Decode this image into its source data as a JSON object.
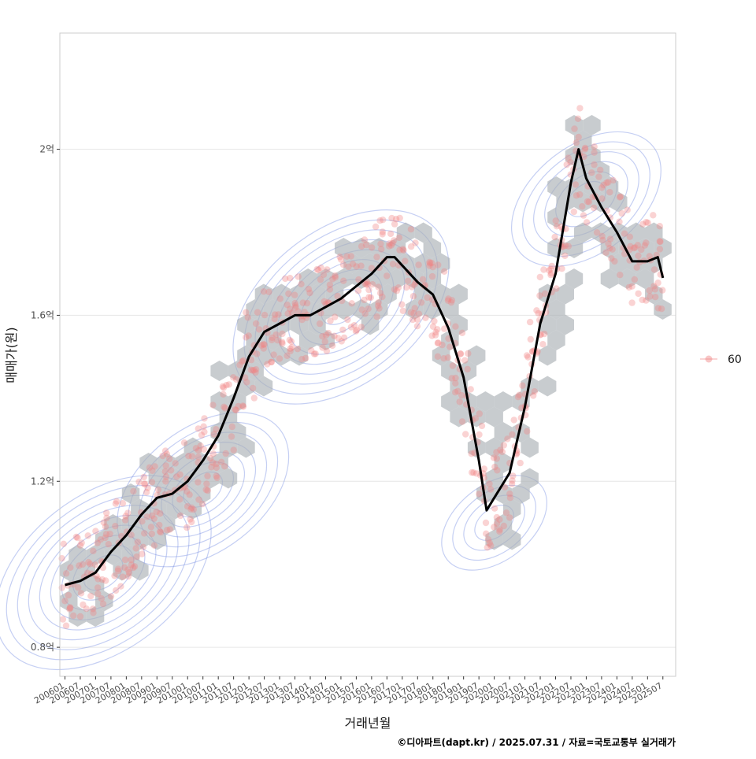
{
  "chart_data": {
    "type": "scatter",
    "xlabel": "거래년월",
    "ylabel": "매매가(원)",
    "caption": "©디아파트(dapt.kr) / 2025.07.31 / 자료=국토교통부 실거래가",
    "x_tick_labels": [
      "200601",
      "200607",
      "200701",
      "200707",
      "200801",
      "200807",
      "200901",
      "200907",
      "201001",
      "201007",
      "201101",
      "201107",
      "201201",
      "201207",
      "201301",
      "201307",
      "201401",
      "201407",
      "201501",
      "201507",
      "201601",
      "201607",
      "201701",
      "201707",
      "201801",
      "201807",
      "201901",
      "201907",
      "202001",
      "202007",
      "202101",
      "202107",
      "202201",
      "202207",
      "202301",
      "202307",
      "202401",
      "202407",
      "202501",
      "202507"
    ],
    "y_ticks": [
      {
        "value": 0.8,
        "label": "0.8억"
      },
      {
        "value": 1.2,
        "label": "1.2억"
      },
      {
        "value": 1.6,
        "label": "1.6억"
      },
      {
        "value": 2.0,
        "label": "2억"
      }
    ],
    "y_unit": "억",
    "ylim": [
      0.73,
      2.28
    ],
    "xlim": [
      "2005-11",
      "2025-12"
    ],
    "grid": true,
    "legend": {
      "position": "right",
      "entries": [
        {
          "label": "60",
          "color": "#f08080"
        }
      ]
    },
    "colors": {
      "points": "#f08080",
      "trend_line": "#000000",
      "hex_bins": "#aab0b5",
      "density_contours": "#6f88e0",
      "grid": "#e6e6e6",
      "panel_border": "#cccccc"
    },
    "series": [
      {
        "name": "trend",
        "type": "line",
        "points": [
          [
            "2006-01",
            0.95
          ],
          [
            "2006-07",
            0.96
          ],
          [
            "2007-01",
            0.98
          ],
          [
            "2007-07",
            1.03
          ],
          [
            "2008-01",
            1.07
          ],
          [
            "2008-07",
            1.12
          ],
          [
            "2009-01",
            1.16
          ],
          [
            "2009-07",
            1.17
          ],
          [
            "2010-01",
            1.2
          ],
          [
            "2010-07",
            1.25
          ],
          [
            "2011-01",
            1.31
          ],
          [
            "2011-07",
            1.4
          ],
          [
            "2012-01",
            1.5
          ],
          [
            "2012-07",
            1.56
          ],
          [
            "2013-01",
            1.58
          ],
          [
            "2013-07",
            1.6
          ],
          [
            "2014-01",
            1.6
          ],
          [
            "2014-07",
            1.62
          ],
          [
            "2015-01",
            1.64
          ],
          [
            "2015-07",
            1.67
          ],
          [
            "2016-01",
            1.7
          ],
          [
            "2016-07",
            1.74
          ],
          [
            "2016-10",
            1.74
          ],
          [
            "2017-01",
            1.72
          ],
          [
            "2017-07",
            1.68
          ],
          [
            "2018-01",
            1.65
          ],
          [
            "2018-07",
            1.57
          ],
          [
            "2019-01",
            1.45
          ],
          [
            "2019-07",
            1.25
          ],
          [
            "2019-10",
            1.13
          ],
          [
            "2020-01",
            1.16
          ],
          [
            "2020-04",
            1.19
          ],
          [
            "2020-07",
            1.22
          ],
          [
            "2021-01",
            1.38
          ],
          [
            "2021-07",
            1.58
          ],
          [
            "2022-01",
            1.7
          ],
          [
            "2022-07",
            1.92
          ],
          [
            "2022-10",
            2.0
          ],
          [
            "2023-01",
            1.93
          ],
          [
            "2023-07",
            1.86
          ],
          [
            "2024-01",
            1.8
          ],
          [
            "2024-07",
            1.73
          ],
          [
            "2025-01",
            1.73
          ],
          [
            "2025-05",
            1.74
          ],
          [
            "2025-07",
            1.69
          ]
        ]
      }
    ],
    "density_centers": [
      {
        "x": "2007-04",
        "y": 0.98,
        "levels": 9
      },
      {
        "x": "2010-07",
        "y": 1.18,
        "levels": 7
      },
      {
        "x": "2015-01",
        "y": 1.62,
        "levels": 9
      },
      {
        "x": "2020-01",
        "y": 1.1,
        "levels": 4
      },
      {
        "x": "2023-01",
        "y": 1.88,
        "levels": 6
      }
    ]
  }
}
